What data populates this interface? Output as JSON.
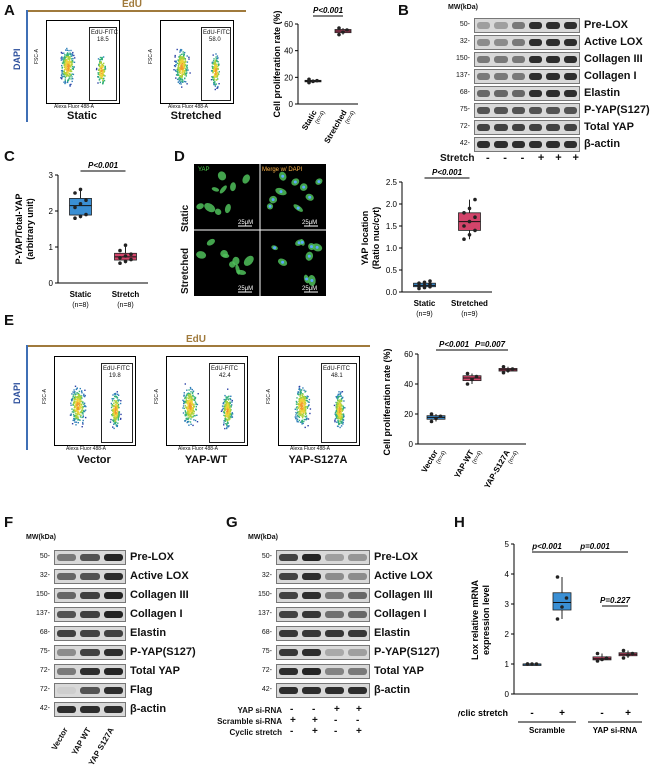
{
  "panelA": {
    "label": "A",
    "edu": "EdU",
    "dapi": "DAPI",
    "xaxis": "Alexa Fluor 488-A",
    "yaxis": "FSC-A",
    "plots": [
      {
        "gate": "EdU-FITC",
        "value": "18.5",
        "condition": "Static"
      },
      {
        "gate": "EdU-FITC",
        "value": "58.0",
        "condition": "Stretched"
      }
    ],
    "chart_ylabel": "Cell proliferation rate (%)",
    "pvalue": "P<0.001",
    "groups": [
      {
        "name": "Static",
        "n": "(n=4)"
      },
      {
        "name": "Stretched",
        "n": "(n=4)"
      }
    ],
    "yticks": [
      "0",
      "20",
      "40",
      "60"
    ]
  },
  "panelB": {
    "label": "B",
    "mw_header": "MW(kDa)",
    "rows": [
      {
        "mw": "50-",
        "name": "Pre-LOX"
      },
      {
        "mw": "32-",
        "name": "Active LOX"
      },
      {
        "mw": "150-",
        "name": "Collagen III"
      },
      {
        "mw": "137-",
        "name": "Collagen I"
      },
      {
        "mw": "68-",
        "name": "Elastin"
      },
      {
        "mw": "75-",
        "name": "P-YAP(S127)"
      },
      {
        "mw": "72-",
        "name": "Total YAP"
      },
      {
        "mw": "42-",
        "name": "β-actin"
      }
    ],
    "stretch_label": "Stretch",
    "stretch_signs": [
      "-",
      "-",
      "-",
      "+",
      "+",
      "+"
    ]
  },
  "panelC": {
    "label": "C",
    "ylabel1": "P-YAP/Total-YAP",
    "ylabel2": "(arbitrary unit)",
    "pvalue": "P<0.001",
    "groups": [
      {
        "name": "Static",
        "n": "(n=8)"
      },
      {
        "name": "Stretch",
        "n": "(n=8)"
      }
    ],
    "yticks": [
      "0",
      "1",
      "2",
      "3"
    ]
  },
  "panelD": {
    "label": "D",
    "col_titles": [
      "YAP",
      "Merge w/ DAPI"
    ],
    "row_titles": [
      "Static",
      "Stretched"
    ],
    "scale": "25μM",
    "ylabel1": "YAP location",
    "ylabel2": "(Ratio nuc/cyt)",
    "pvalue": "P<0.001",
    "groups": [
      {
        "name": "Static",
        "n": "(n=9)"
      },
      {
        "name": "Stretched",
        "n": "(n=9)"
      }
    ],
    "yticks": [
      "0.0",
      "0.5",
      "1.0",
      "1.5",
      "2.0",
      "2.5"
    ]
  },
  "panelE": {
    "label": "E",
    "edu": "EdU",
    "dapi": "DAPI",
    "xaxis": "Alexa Fluor 488-A",
    "yaxis": "FSC-A",
    "plots": [
      {
        "gate": "EdU-FITC",
        "value": "19.8",
        "condition": "Vector"
      },
      {
        "gate": "EdU-FITC",
        "value": "42.4",
        "condition": "YAP-WT"
      },
      {
        "gate": "EdU-FITC",
        "value": "48.1",
        "condition": "YAP-S127A"
      }
    ],
    "chart_ylabel": "Cell proliferation rate (%)",
    "pvalues": [
      "P<0.001",
      "P=0.007"
    ],
    "groups": [
      {
        "name": "Vector",
        "n": "(n=4)"
      },
      {
        "name": "YAP-WT",
        "n": "(n=4)"
      },
      {
        "name": "YAP-S127A",
        "n": "(n=4)"
      }
    ],
    "yticks": [
      "0",
      "20",
      "40",
      "60"
    ]
  },
  "panelF": {
    "label": "F",
    "mw_header": "MW(kDa)",
    "rows": [
      {
        "mw": "50-",
        "name": "Pre-LOX"
      },
      {
        "mw": "32-",
        "name": "Active LOX"
      },
      {
        "mw": "150-",
        "name": "Collagen III"
      },
      {
        "mw": "137-",
        "name": "Collagen I"
      },
      {
        "mw": "68-",
        "name": "Elastin"
      },
      {
        "mw": "75-",
        "name": "P-YAP(S127)"
      },
      {
        "mw": "72-",
        "name": "Total YAP"
      },
      {
        "mw": "72-",
        "name": "Flag"
      },
      {
        "mw": "42-",
        "name": "β-actin"
      }
    ],
    "lanes": [
      "Vector",
      "YAP WT",
      "YAP S127A"
    ]
  },
  "panelG": {
    "label": "G",
    "mw_header": "MW(kDa)",
    "rows": [
      {
        "mw": "50-",
        "name": "Pre-LOX"
      },
      {
        "mw": "32-",
        "name": "Active LOX"
      },
      {
        "mw": "150-",
        "name": "Collagen III"
      },
      {
        "mw": "137-",
        "name": "Collagen I"
      },
      {
        "mw": "68-",
        "name": "Elastin"
      },
      {
        "mw": "75-",
        "name": "P-YAP(S127)"
      },
      {
        "mw": "72-",
        "name": "Total YAP"
      },
      {
        "mw": "42-",
        "name": "β-actin"
      }
    ],
    "conditions": [
      {
        "name": "YAP si-RNA",
        "signs": [
          "-",
          "-",
          "+",
          "+"
        ]
      },
      {
        "name": "Scramble si-RNA",
        "signs": [
          "+",
          "+",
          "-",
          "-"
        ]
      },
      {
        "name": "Cyclic stretch",
        "signs": [
          "-",
          "+",
          "-",
          "+"
        ]
      }
    ]
  },
  "panelH": {
    "label": "H",
    "ylabel1": "Lox relative mRNA",
    "ylabel2": "expression level",
    "pvalues": [
      "p<0.001",
      "p=0.001",
      "P=0.227"
    ],
    "stretch_label": "Cyclic stretch",
    "signs": [
      "-",
      "+",
      "-",
      "+"
    ],
    "groups": [
      "Scramble",
      "YAP si-RNA"
    ],
    "yticks": [
      "0",
      "1",
      "2",
      "3",
      "4",
      "5"
    ]
  },
  "chart_data": [
    {
      "type": "box",
      "title": "A",
      "ylabel": "Cell proliferation rate (%)",
      "ylim": [
        0,
        60
      ],
      "categories": [
        "Static",
        "Stretched"
      ],
      "values": [
        [
          16,
          17,
          17.5,
          18.5
        ],
        [
          52,
          54,
          55.5,
          57
        ]
      ],
      "colors": [
        "#3a8fd4",
        "#d2446a"
      ]
    },
    {
      "type": "box",
      "title": "C",
      "ylabel": "P-YAP/Total-YAP (arbitrary unit)",
      "ylim": [
        0,
        3
      ],
      "categories": [
        "Static",
        "Stretch"
      ],
      "values": [
        [
          1.8,
          1.85,
          1.9,
          2.1,
          2.2,
          2.3,
          2.5,
          2.6
        ],
        [
          0.55,
          0.6,
          0.65,
          0.7,
          0.75,
          0.8,
          0.9,
          1.05
        ]
      ],
      "colors": [
        "#3a8fd4",
        "#d2446a"
      ]
    },
    {
      "type": "box",
      "title": "D",
      "ylabel": "YAP location (Ratio nuc/cyt)",
      "ylim": [
        0,
        2.5
      ],
      "categories": [
        "Static",
        "Stretched"
      ],
      "values": [
        [
          0.08,
          0.1,
          0.12,
          0.14,
          0.15,
          0.18,
          0.2,
          0.22,
          0.25
        ],
        [
          1.2,
          1.3,
          1.4,
          1.5,
          1.6,
          1.7,
          1.8,
          1.9,
          2.1
        ]
      ],
      "colors": [
        "#3a8fd4",
        "#d2446a"
      ]
    },
    {
      "type": "box",
      "title": "E",
      "ylabel": "Cell proliferation rate (%)",
      "ylim": [
        0,
        60
      ],
      "categories": [
        "Vector",
        "YAP-WT",
        "YAP-S127A"
      ],
      "values": [
        [
          15,
          17,
          18.5,
          20
        ],
        [
          40,
          43,
          45,
          47
        ],
        [
          47.5,
          49,
          50,
          51.5
        ]
      ],
      "colors": [
        "#3a8fd4",
        "#d2446a",
        "#d2446a"
      ]
    },
    {
      "type": "box",
      "title": "H",
      "ylabel": "Lox relative mRNA expression level",
      "ylim": [
        0,
        5
      ],
      "categories": [
        "Scramble -",
        "Scramble +",
        "YAP si-RNA -",
        "YAP si-RNA +"
      ],
      "values": [
        [
          1,
          1,
          1,
          1
        ],
        [
          2.5,
          2.9,
          3.2,
          3.9
        ],
        [
          1.1,
          1.15,
          1.2,
          1.35
        ],
        [
          1.2,
          1.3,
          1.35,
          1.45
        ]
      ],
      "colors": [
        "#3a8fd4",
        "#3a8fd4",
        "#d2446a",
        "#d2446a"
      ]
    }
  ]
}
